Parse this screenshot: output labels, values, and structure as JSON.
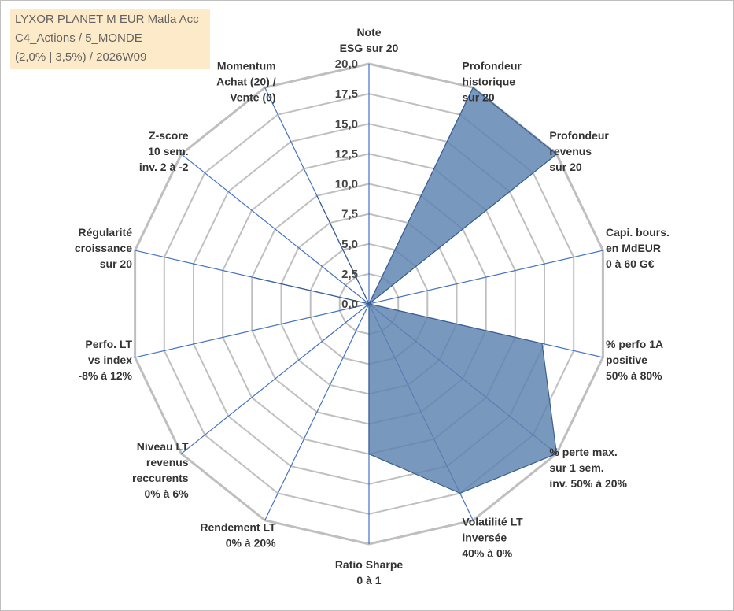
{
  "title_lines": [
    "LYXOR PLANET M EUR Matla Acc",
    "C4_Actions / 5_MONDE",
    "(2,0% | 3,5%) / 2026W09"
  ],
  "chart_data": {
    "type": "radar",
    "rmin": 0,
    "rmax": 20,
    "tick_step": 2.5,
    "tick_labels": [
      "0,0",
      "2,5",
      "5,0",
      "7,5",
      "10,0",
      "12,5",
      "15,0",
      "17,5",
      "20,0"
    ],
    "grid": true,
    "legend": "none",
    "fill_color": "#5b81b0",
    "stroke_color": "#3a5f91",
    "grid_color": "#bfbfbf",
    "spoke_color": "#4472c4",
    "axes": [
      {
        "label": [
          "Note",
          "ESG sur 20"
        ],
        "value": 0
      },
      {
        "label": [
          "Profondeur",
          "historique",
          "sur 20"
        ],
        "value": 20
      },
      {
        "label": [
          "Profondeur",
          "revenus",
          "sur 20"
        ],
        "value": 20
      },
      {
        "label": [
          "Capi. bours.",
          "en MdEUR",
          "0 à 60 G€"
        ],
        "value": 0
      },
      {
        "label": [
          "% perfo 1A",
          "positive",
          "50% à 80%"
        ],
        "value": 14.8
      },
      {
        "label": [
          "% perte max.",
          "sur 1 sem.",
          "inv. 50% à 20%"
        ],
        "value": 20
      },
      {
        "label": [
          "Volatilité LT",
          "inversée",
          "40% à 0%"
        ],
        "value": 17.5
      },
      {
        "label": [
          "Ratio Sharpe",
          "0 à 1"
        ],
        "value": 12.5
      },
      {
        "label": [
          "Rendement LT",
          "0% à 20%"
        ],
        "value": 0
      },
      {
        "label": [
          "Niveau LT",
          "revenus",
          "reccurents",
          "0% à 6%"
        ],
        "value": 0
      },
      {
        "label": [
          "Perfo. LT",
          "vs index",
          "-8% à 12%"
        ],
        "value": 0
      },
      {
        "label": [
          "Régularité",
          "croissance",
          "sur 20"
        ],
        "value": 9.8
      },
      {
        "label": [
          "Z-score",
          "10 sem.",
          "inv. 2 à -2"
        ],
        "value": 0
      },
      {
        "label": [
          "Momentum",
          "Achat (20) /",
          "Vente (0)"
        ],
        "value": 10
      }
    ]
  }
}
